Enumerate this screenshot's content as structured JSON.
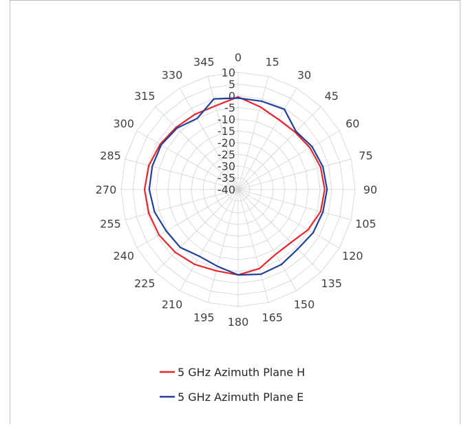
{
  "chart_data": {
    "type": "radar",
    "title": "",
    "angle_labels": [
      "0",
      "15",
      "30",
      "45",
      "60",
      "75",
      "90",
      "105",
      "120",
      "135",
      "150",
      "165",
      "180",
      "195",
      "210",
      "225",
      "240",
      "255",
      "270",
      "285",
      "300",
      "315",
      "330",
      "345"
    ],
    "radial_ticks": [
      "10",
      "5",
      "0",
      "-5",
      "-10",
      "-15",
      "-20",
      "-25",
      "-30",
      "-35",
      "-40"
    ],
    "rlim": [
      -40,
      10
    ],
    "grid": true,
    "legend_position": "bottom",
    "series": [
      {
        "name": "5 GHz Azimuth Plane H",
        "color": "#e8262b",
        "values": [
          -0.5,
          -3.5,
          -5.5,
          -5.5,
          -4.5,
          -3.5,
          -3.0,
          -3.5,
          -5.5,
          -8.0,
          -8.0,
          -5.0,
          -3.5,
          -4.0,
          -3.0,
          -2.0,
          -1.0,
          -0.5,
          0.0,
          -0.5,
          -1.5,
          -2.5,
          -3.0,
          -3.0
        ]
      },
      {
        "name": "5 GHz Azimuth Plane E",
        "color": "#1f3f9b",
        "values": [
          -1.0,
          -1.0,
          -0.5,
          -5.0,
          -3.5,
          -2.5,
          -2.0,
          -2.5,
          -3.0,
          -4.0,
          -3.0,
          -2.5,
          -3.5,
          -6.0,
          -7.0,
          -5.0,
          -4.5,
          -3.0,
          -2.0,
          -2.0,
          -2.0,
          -3.0,
          -5.0,
          0.0
        ]
      }
    ]
  }
}
